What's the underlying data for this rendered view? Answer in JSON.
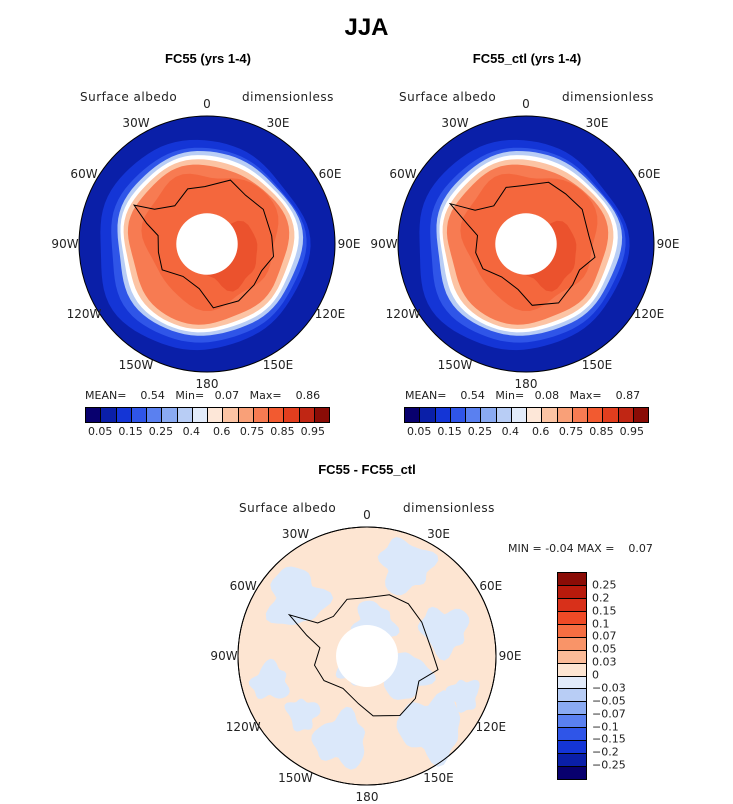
{
  "title": "JJA",
  "chart_data": [
    {
      "type": "heatmap",
      "title": "FC55 (yrs 1-4)",
      "variable": "Surface albedo",
      "units": "dimensionless",
      "projection": "south polar stereographic",
      "lon_labels": [
        "0",
        "30E",
        "60E",
        "90E",
        "120E",
        "150E",
        "180",
        "150W",
        "120W",
        "90W",
        "60W",
        "30W"
      ],
      "stats": {
        "mean_label": "MEAN=",
        "mean": "0.54",
        "min_label": "Min=",
        "min": "0.07",
        "max_label": "Max=",
        "max": "0.86"
      },
      "colorbar_ticks": [
        "0.05",
        "0.15",
        "0.25",
        "0.4",
        "0.6",
        "0.75",
        "0.85",
        "0.95"
      ],
      "colorbar_colors": [
        "#08006e",
        "#0a1fa8",
        "#1435d6",
        "#2f55e8",
        "#5a80f0",
        "#8aaaf2",
        "#b8cdf5",
        "#e2ebfa",
        "#fde7d8",
        "#fcc4a4",
        "#f9a078",
        "#f77b52",
        "#f25a30",
        "#e23e1e",
        "#c02614",
        "#8a0c06"
      ]
    },
    {
      "type": "heatmap",
      "title": "FC55_ctl (yrs 1-4)",
      "variable": "Surface albedo",
      "units": "dimensionless",
      "projection": "south polar stereographic",
      "lon_labels": [
        "0",
        "30E",
        "60E",
        "90E",
        "120E",
        "150E",
        "180",
        "150W",
        "120W",
        "90W",
        "60W",
        "30W"
      ],
      "stats": {
        "mean_label": "MEAN=",
        "mean": "0.54",
        "min_label": "Min=",
        "min": "0.08",
        "max_label": "Max=",
        "max": "0.87"
      },
      "colorbar_ticks": [
        "0.05",
        "0.15",
        "0.25",
        "0.4",
        "0.6",
        "0.75",
        "0.85",
        "0.95"
      ],
      "colorbar_colors": [
        "#08006e",
        "#0a1fa8",
        "#1435d6",
        "#2f55e8",
        "#5a80f0",
        "#8aaaf2",
        "#b8cdf5",
        "#e2ebfa",
        "#fde7d8",
        "#fcc4a4",
        "#f9a078",
        "#f77b52",
        "#f25a30",
        "#e23e1e",
        "#c02614",
        "#8a0c06"
      ]
    },
    {
      "type": "heatmap",
      "title": "FC55 - FC55_ctl",
      "variable": "Surface albedo",
      "units": "dimensionless",
      "projection": "south polar stereographic",
      "lon_labels": [
        "0",
        "30E",
        "60E",
        "90E",
        "120E",
        "150E",
        "180",
        "150W",
        "120W",
        "90W",
        "60W",
        "30W"
      ],
      "stats": {
        "min_label": "MIN =",
        "min": "-0.04",
        "max_label": "MAX =",
        "max": "0.07"
      },
      "colorbar_ticks": [
        "0.25",
        "0.2",
        "0.15",
        "0.1",
        "0.07",
        "0.05",
        "0.03",
        "0",
        "−0.03",
        "−0.05",
        "−0.07",
        "−0.1",
        "−0.15",
        "−0.2",
        "−0.25"
      ],
      "colorbar_colors": [
        "#8a0c06",
        "#b81a0c",
        "#d8301a",
        "#ef4a26",
        "#f66e42",
        "#f99468",
        "#fbbb98",
        "#fde5d2",
        "#e2ebfa",
        "#b8cdf5",
        "#8aaaf2",
        "#5a80f0",
        "#2f55e8",
        "#1435d6",
        "#0a1fa8",
        "#08006e"
      ]
    }
  ]
}
